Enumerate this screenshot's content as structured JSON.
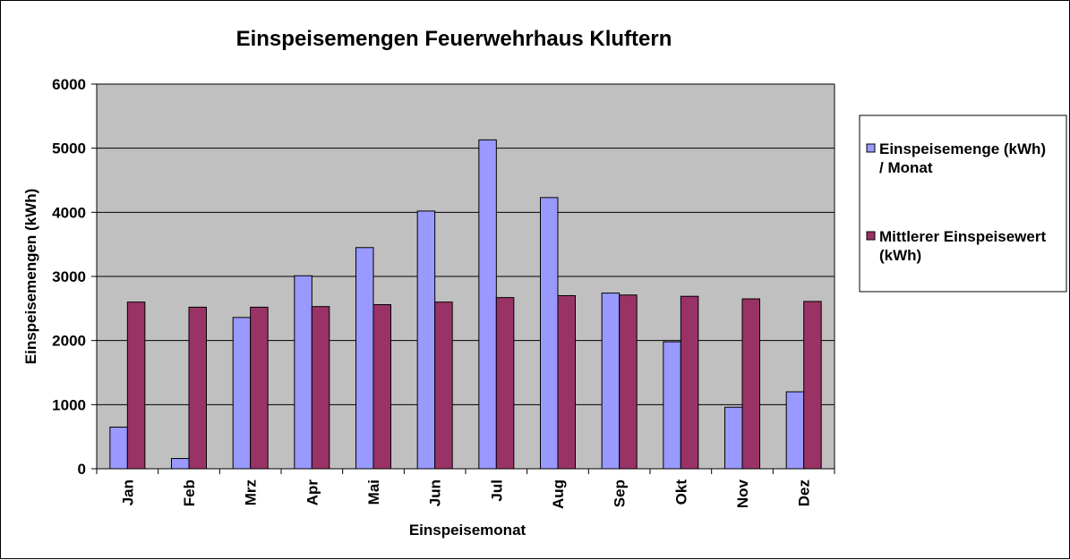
{
  "chart_data": {
    "type": "bar",
    "title": "Einspeisemengen Feuerwehrhaus Kluftern",
    "xlabel": "Einspeisemonat",
    "ylabel": "Einspeisemengen (kWh)",
    "ylim": [
      0,
      6000
    ],
    "yticks": [
      0,
      1000,
      2000,
      3000,
      4000,
      5000,
      6000
    ],
    "grid": true,
    "legend_position": "right",
    "background_color": "#c0c0c0",
    "categories": [
      "Jan",
      "Feb",
      "Mrz",
      "Apr",
      "Mai",
      "Jun",
      "Jul",
      "Aug",
      "Sep",
      "Okt",
      "Nov",
      "Dez"
    ],
    "series": [
      {
        "name": "Einspeisemenge (kWh) / Monat",
        "legend_lines": [
          "Einspeisemenge (kWh)",
          "/ Monat"
        ],
        "color": "#9999ff",
        "values": [
          650,
          160,
          2360,
          3010,
          3450,
          4020,
          5130,
          4230,
          2740,
          1980,
          960,
          1200
        ]
      },
      {
        "name": "Mittlerer Einspeisewert (kWh)",
        "legend_lines": [
          "Mittlerer Einspeisewert",
          "(kWh)"
        ],
        "color": "#993366",
        "values": [
          2600,
          2520,
          2520,
          2530,
          2560,
          2600,
          2670,
          2700,
          2710,
          2690,
          2650,
          2610
        ]
      }
    ]
  }
}
